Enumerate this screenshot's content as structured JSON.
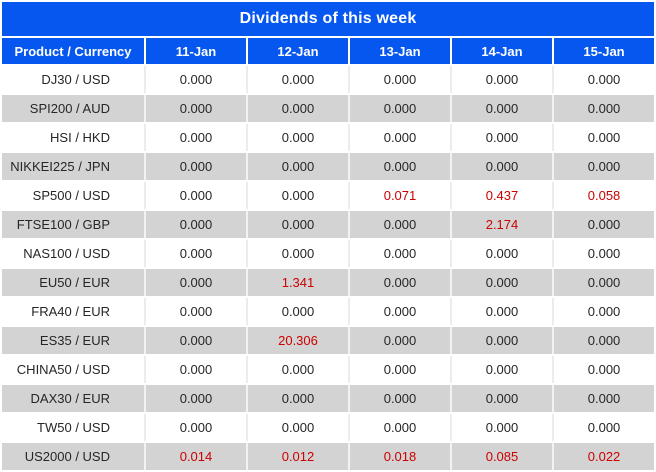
{
  "title": "Dividends of this week",
  "table": {
    "columns": [
      "Product / Currency",
      "11-Jan",
      "12-Jan",
      "13-Jan",
      "14-Jan",
      "15-Jan"
    ],
    "rows": [
      {
        "product": "DJ30 / USD",
        "values": [
          "0.000",
          "0.000",
          "0.000",
          "0.000",
          "0.000"
        ],
        "red": [
          false,
          false,
          false,
          false,
          false
        ]
      },
      {
        "product": "SPI200 / AUD",
        "values": [
          "0.000",
          "0.000",
          "0.000",
          "0.000",
          "0.000"
        ],
        "red": [
          false,
          false,
          false,
          false,
          false
        ]
      },
      {
        "product": "HSI / HKD",
        "values": [
          "0.000",
          "0.000",
          "0.000",
          "0.000",
          "0.000"
        ],
        "red": [
          false,
          false,
          false,
          false,
          false
        ]
      },
      {
        "product": "NIKKEI225 / JPN",
        "values": [
          "0.000",
          "0.000",
          "0.000",
          "0.000",
          "0.000"
        ],
        "red": [
          false,
          false,
          false,
          false,
          false
        ]
      },
      {
        "product": "SP500 / USD",
        "values": [
          "0.000",
          "0.000",
          "0.071",
          "0.437",
          "0.058"
        ],
        "red": [
          false,
          false,
          true,
          true,
          true
        ]
      },
      {
        "product": "FTSE100 / GBP",
        "values": [
          "0.000",
          "0.000",
          "0.000",
          "2.174",
          "0.000"
        ],
        "red": [
          false,
          false,
          false,
          true,
          false
        ]
      },
      {
        "product": "NAS100 / USD",
        "values": [
          "0.000",
          "0.000",
          "0.000",
          "0.000",
          "0.000"
        ],
        "red": [
          false,
          false,
          false,
          false,
          false
        ]
      },
      {
        "product": "EU50 / EUR",
        "values": [
          "0.000",
          "1.341",
          "0.000",
          "0.000",
          "0.000"
        ],
        "red": [
          false,
          true,
          false,
          false,
          false
        ]
      },
      {
        "product": "FRA40 / EUR",
        "values": [
          "0.000",
          "0.000",
          "0.000",
          "0.000",
          "0.000"
        ],
        "red": [
          false,
          false,
          false,
          false,
          false
        ]
      },
      {
        "product": "ES35 / EUR",
        "values": [
          "0.000",
          "20.306",
          "0.000",
          "0.000",
          "0.000"
        ],
        "red": [
          false,
          true,
          false,
          false,
          false
        ]
      },
      {
        "product": "CHINA50 / USD",
        "values": [
          "0.000",
          "0.000",
          "0.000",
          "0.000",
          "0.000"
        ],
        "red": [
          false,
          false,
          false,
          false,
          false
        ]
      },
      {
        "product": "DAX30 / EUR",
        "values": [
          "0.000",
          "0.000",
          "0.000",
          "0.000",
          "0.000"
        ],
        "red": [
          false,
          false,
          false,
          false,
          false
        ]
      },
      {
        "product": "TW50 / USD",
        "values": [
          "0.000",
          "0.000",
          "0.000",
          "0.000",
          "0.000"
        ],
        "red": [
          false,
          false,
          false,
          false,
          false
        ]
      },
      {
        "product": "US2000 / USD",
        "values": [
          "0.014",
          "0.012",
          "0.018",
          "0.085",
          "0.022"
        ],
        "red": [
          true,
          true,
          true,
          true,
          true
        ]
      }
    ]
  },
  "colors": {
    "header_blue": "#0656f0",
    "highlight_red": "#cc0000",
    "row_alt_gray": "#d3d3d3"
  }
}
